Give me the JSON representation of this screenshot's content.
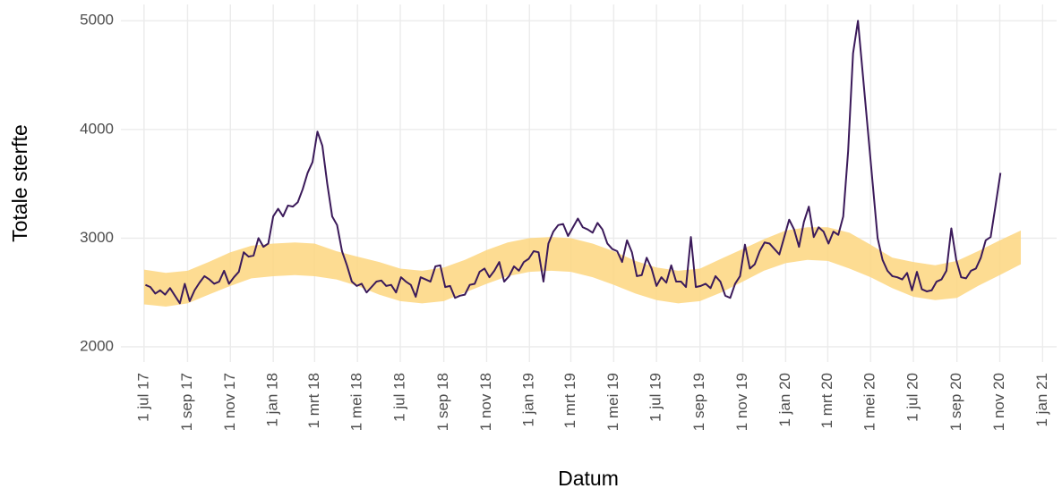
{
  "chart_data": {
    "type": "line",
    "x_label": "Datum",
    "y_label": "Totale sterfte",
    "xlim": [
      "2017-05-29",
      "2021-01-21"
    ],
    "ylim": [
      1860,
      5150
    ],
    "xticks": [
      {
        "value": "2017-07-01",
        "label": "1 jul 17"
      },
      {
        "value": "2017-09-01",
        "label": "1 sep 17"
      },
      {
        "value": "2017-11-01",
        "label": "1 nov 17"
      },
      {
        "value": "2018-01-01",
        "label": "1 jan 18"
      },
      {
        "value": "2018-03-01",
        "label": "1 mrt 18"
      },
      {
        "value": "2018-05-01",
        "label": "1 mei 18"
      },
      {
        "value": "2018-07-01",
        "label": "1 jul 18"
      },
      {
        "value": "2018-09-01",
        "label": "1 sep 18"
      },
      {
        "value": "2018-11-01",
        "label": "1 nov 18"
      },
      {
        "value": "2019-01-01",
        "label": "1 jan 19"
      },
      {
        "value": "2019-03-01",
        "label": "1 mrt 19"
      },
      {
        "value": "2019-05-01",
        "label": "1 mei 19"
      },
      {
        "value": "2019-07-01",
        "label": "1 jul 19"
      },
      {
        "value": "2019-09-01",
        "label": "1 sep 19"
      },
      {
        "value": "2019-11-01",
        "label": "1 nov 19"
      },
      {
        "value": "2020-01-01",
        "label": "1 jan 20"
      },
      {
        "value": "2020-03-01",
        "label": "1 mrt 20"
      },
      {
        "value": "2020-05-01",
        "label": "1 mei 20"
      },
      {
        "value": "2020-07-01",
        "label": "1 jul 20"
      },
      {
        "value": "2020-09-01",
        "label": "1 sep 20"
      },
      {
        "value": "2020-11-01",
        "label": "1 nov 20"
      },
      {
        "value": "2021-01-01",
        "label": "1 jan 21"
      }
    ],
    "yticks": [
      2000,
      3000,
      4000,
      5000
    ],
    "grid": true,
    "x": [
      "2017-07-03",
      "2017-07-10",
      "2017-07-17",
      "2017-07-24",
      "2017-07-31",
      "2017-08-07",
      "2017-08-14",
      "2017-08-21",
      "2017-08-28",
      "2017-09-04",
      "2017-09-11",
      "2017-09-18",
      "2017-09-25",
      "2017-10-02",
      "2017-10-09",
      "2017-10-16",
      "2017-10-23",
      "2017-10-30",
      "2017-11-06",
      "2017-11-13",
      "2017-11-20",
      "2017-11-27",
      "2017-12-04",
      "2017-12-11",
      "2017-12-18",
      "2017-12-25",
      "2018-01-01",
      "2018-01-08",
      "2018-01-15",
      "2018-01-22",
      "2018-01-29",
      "2018-02-05",
      "2018-02-12",
      "2018-02-19",
      "2018-02-26",
      "2018-03-05",
      "2018-03-12",
      "2018-03-19",
      "2018-03-26",
      "2018-04-02",
      "2018-04-09",
      "2018-04-16",
      "2018-04-23",
      "2018-04-30",
      "2018-05-07",
      "2018-05-14",
      "2018-05-21",
      "2018-05-28",
      "2018-06-04",
      "2018-06-11",
      "2018-06-18",
      "2018-06-25",
      "2018-07-02",
      "2018-07-09",
      "2018-07-16",
      "2018-07-23",
      "2018-07-30",
      "2018-08-06",
      "2018-08-13",
      "2018-08-20",
      "2018-08-27",
      "2018-09-03",
      "2018-09-10",
      "2018-09-17",
      "2018-09-24",
      "2018-10-01",
      "2018-10-08",
      "2018-10-15",
      "2018-10-22",
      "2018-10-29",
      "2018-11-05",
      "2018-11-12",
      "2018-11-19",
      "2018-11-26",
      "2018-12-03",
      "2018-12-10",
      "2018-12-17",
      "2018-12-24",
      "2018-12-31",
      "2019-01-07",
      "2019-01-14",
      "2019-01-21",
      "2019-01-28",
      "2019-02-04",
      "2019-02-11",
      "2019-02-18",
      "2019-02-25",
      "2019-03-04",
      "2019-03-11",
      "2019-03-18",
      "2019-03-25",
      "2019-04-01",
      "2019-04-08",
      "2019-04-15",
      "2019-04-22",
      "2019-04-29",
      "2019-05-06",
      "2019-05-13",
      "2019-05-20",
      "2019-05-27",
      "2019-06-03",
      "2019-06-10",
      "2019-06-17",
      "2019-06-24",
      "2019-07-01",
      "2019-07-08",
      "2019-07-15",
      "2019-07-22",
      "2019-07-29",
      "2019-08-05",
      "2019-08-12",
      "2019-08-19",
      "2019-08-26",
      "2019-09-02",
      "2019-09-09",
      "2019-09-16",
      "2019-09-23",
      "2019-09-30",
      "2019-10-07",
      "2019-10-14",
      "2019-10-21",
      "2019-10-28",
      "2019-11-04",
      "2019-11-11",
      "2019-11-18",
      "2019-11-25",
      "2019-12-02",
      "2019-12-09",
      "2019-12-16",
      "2019-12-23",
      "2019-12-30",
      "2020-01-06",
      "2020-01-13",
      "2020-01-20",
      "2020-01-27",
      "2020-02-03",
      "2020-02-10",
      "2020-02-17",
      "2020-02-24",
      "2020-03-02",
      "2020-03-09",
      "2020-03-16",
      "2020-03-23",
      "2020-03-30",
      "2020-04-06",
      "2020-04-13",
      "2020-04-20",
      "2020-04-27",
      "2020-05-04",
      "2020-05-11",
      "2020-05-18",
      "2020-05-25",
      "2020-06-01",
      "2020-06-08",
      "2020-06-15",
      "2020-06-22",
      "2020-06-29",
      "2020-07-06",
      "2020-07-13",
      "2020-07-20",
      "2020-07-27",
      "2020-08-03",
      "2020-08-10",
      "2020-08-17",
      "2020-08-24",
      "2020-08-31",
      "2020-09-07",
      "2020-09-14",
      "2020-09-21",
      "2020-09-28",
      "2020-10-05",
      "2020-10-12",
      "2020-10-19",
      "2020-10-26",
      "2020-11-02"
    ],
    "series": [
      {
        "color": "#3b1a5a",
        "values": [
          2570,
          2550,
          2490,
          2520,
          2480,
          2540,
          2470,
          2400,
          2580,
          2420,
          2520,
          2590,
          2650,
          2620,
          2580,
          2600,
          2700,
          2580,
          2640,
          2690,
          2870,
          2830,
          2840,
          3000,
          2920,
          2950,
          3200,
          3270,
          3200,
          3300,
          3290,
          3330,
          3450,
          3600,
          3700,
          3980,
          3850,
          3500,
          3200,
          3120,
          2880,
          2750,
          2600,
          2560,
          2580,
          2500,
          2550,
          2600,
          2610,
          2560,
          2570,
          2500,
          2640,
          2600,
          2570,
          2460,
          2640,
          2620,
          2600,
          2740,
          2750,
          2550,
          2560,
          2450,
          2470,
          2480,
          2570,
          2580,
          2690,
          2720,
          2640,
          2700,
          2780,
          2600,
          2650,
          2740,
          2700,
          2780,
          2810,
          2880,
          2870,
          2600,
          2950,
          3060,
          3120,
          3130,
          3020,
          3100,
          3180,
          3100,
          3080,
          3050,
          3140,
          3080,
          2950,
          2900,
          2880,
          2780,
          2980,
          2870,
          2650,
          2660,
          2820,
          2720,
          2560,
          2640,
          2590,
          2750,
          2600,
          2600,
          2550,
          3010,
          2550,
          2560,
          2580,
          2540,
          2650,
          2600,
          2470,
          2450,
          2580,
          2650,
          2940,
          2720,
          2760,
          2880,
          2960,
          2950,
          2900,
          2850,
          3010,
          3170,
          3080,
          2920,
          3150,
          3290,
          3010,
          3100,
          3060,
          2950,
          3060,
          3030,
          3200,
          3800,
          4700,
          5000,
          4500,
          4000,
          3500,
          3000,
          2800,
          2700,
          2650,
          2640,
          2620,
          2680,
          2520,
          2690,
          2530,
          2510,
          2520,
          2600,
          2620,
          2700,
          3090,
          2800,
          2640,
          2630,
          2700,
          2720,
          2820,
          2980,
          3010,
          3300,
          3600
        ]
      }
    ],
    "band": {
      "color": "#fdd67f",
      "x": [
        "2017-07-01",
        "2017-08-01",
        "2017-09-01",
        "2017-10-01",
        "2017-11-01",
        "2017-12-01",
        "2018-01-01",
        "2018-02-01",
        "2018-03-01",
        "2018-04-01",
        "2018-05-01",
        "2018-06-01",
        "2018-07-01",
        "2018-08-01",
        "2018-09-01",
        "2018-10-01",
        "2018-11-01",
        "2018-12-01",
        "2019-01-01",
        "2019-02-01",
        "2019-03-01",
        "2019-04-01",
        "2019-05-01",
        "2019-06-01",
        "2019-07-01",
        "2019-08-01",
        "2019-09-01",
        "2019-10-01",
        "2019-11-01",
        "2019-12-01",
        "2020-01-01",
        "2020-02-01",
        "2020-03-01",
        "2020-04-01",
        "2020-05-01",
        "2020-06-01",
        "2020-07-01",
        "2020-08-01",
        "2020-09-01",
        "2020-10-01",
        "2020-11-01",
        "2020-12-01"
      ],
      "lower": [
        2390,
        2370,
        2400,
        2480,
        2560,
        2630,
        2650,
        2660,
        2650,
        2620,
        2560,
        2480,
        2420,
        2400,
        2420,
        2500,
        2580,
        2650,
        2690,
        2700,
        2690,
        2640,
        2570,
        2490,
        2430,
        2400,
        2420,
        2500,
        2600,
        2700,
        2770,
        2800,
        2790,
        2720,
        2640,
        2540,
        2460,
        2430,
        2450,
        2560,
        2660,
        2760
      ],
      "upper": [
        2710,
        2680,
        2700,
        2780,
        2870,
        2930,
        2950,
        2960,
        2950,
        2880,
        2830,
        2780,
        2720,
        2700,
        2730,
        2800,
        2890,
        2960,
        3000,
        3010,
        3000,
        2950,
        2880,
        2790,
        2730,
        2700,
        2720,
        2810,
        2900,
        2990,
        3070,
        3100,
        3100,
        3050,
        2940,
        2820,
        2780,
        2750,
        2790,
        2880,
        2980,
        3070
      ]
    }
  }
}
